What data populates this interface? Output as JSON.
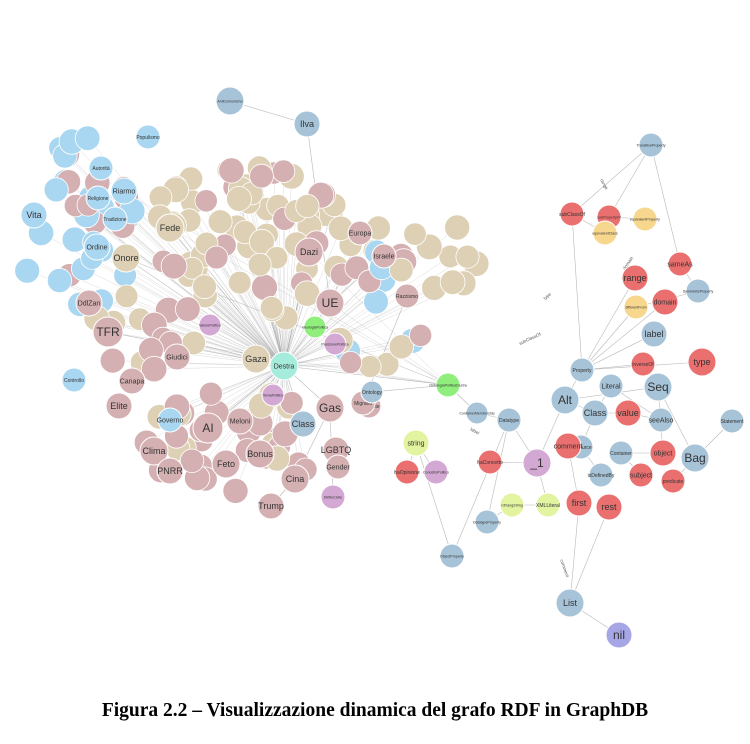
{
  "caption": "Figura 2.2 – Visualizzazione dinamica del grafo RDF in GraphDB",
  "colors": {
    "blue": "#a9d6f0",
    "tan": "#ddd0b4",
    "rose": "#d5b0b2",
    "steel": "#a7c3d7",
    "red": "#ea6f6f",
    "yellow": "#f7d78e",
    "green": "#90ee7c",
    "mint": "#a6ecdc",
    "lime": "#e2f4a0",
    "lilac": "#d3a8d3",
    "purple": "#a6a6e6",
    "edge": "#9a9a9a"
  },
  "nodes": [
    {
      "id": "antiComunismo",
      "label": "AntiComunismo",
      "c": "steel"
    },
    {
      "id": "ilva",
      "label": "Ilva",
      "c": "steel"
    },
    {
      "id": "ue",
      "label": "UE",
      "c": "rose"
    },
    {
      "id": "dazi",
      "label": "Dazi",
      "c": "rose"
    },
    {
      "id": "fede",
      "label": "Fede",
      "c": "tan"
    },
    {
      "id": "onore",
      "label": "Onore",
      "c": "tan"
    },
    {
      "id": "tfr",
      "label": "TFR",
      "c": "rose"
    },
    {
      "id": "vita",
      "label": "Vita",
      "c": "blue"
    },
    {
      "id": "ordine",
      "label": "Ordine",
      "c": "blue"
    },
    {
      "id": "riarmo",
      "label": "Riarmo",
      "c": "blue"
    },
    {
      "id": "gaza",
      "label": "Gaza",
      "c": "tan"
    },
    {
      "id": "destra",
      "label": "Destra",
      "c": "mint"
    },
    {
      "id": "gas",
      "label": "Gas",
      "c": "rose"
    },
    {
      "id": "class1",
      "label": "Class",
      "c": "steel"
    },
    {
      "id": "lgbtq",
      "label": "LGBTQ",
      "c": "rose"
    },
    {
      "id": "gender",
      "label": "Gender",
      "c": "rose"
    },
    {
      "id": "ai",
      "label": "AI",
      "c": "rose"
    },
    {
      "id": "meloni",
      "label": "Meloni",
      "c": "rose"
    },
    {
      "id": "clima",
      "label": "Clima",
      "c": "rose"
    },
    {
      "id": "feto",
      "label": "Feto",
      "c": "rose"
    },
    {
      "id": "bonus",
      "label": "Bonus",
      "c": "rose"
    },
    {
      "id": "pnrr",
      "label": "PNRR",
      "c": "rose"
    },
    {
      "id": "cina",
      "label": "Cina",
      "c": "rose"
    },
    {
      "id": "trump",
      "label": "Trump",
      "c": "rose"
    },
    {
      "id": "europa",
      "label": "Europa",
      "c": "rose"
    },
    {
      "id": "israele",
      "label": "Israele",
      "c": "rose"
    },
    {
      "id": "razzismo",
      "label": "Razzismo",
      "c": "rose"
    },
    {
      "id": "ambiente",
      "label": "Ambiente",
      "c": "rose"
    },
    {
      "id": "migranti",
      "label": "Migranti",
      "c": "rose"
    },
    {
      "id": "elite",
      "label": "Elite",
      "c": "rose"
    },
    {
      "id": "canapa",
      "label": "Canapa",
      "c": "rose"
    },
    {
      "id": "giudici",
      "label": "Giudici",
      "c": "rose"
    },
    {
      "id": "ddlzan",
      "label": "DdlZan",
      "c": "rose"
    },
    {
      "id": "governo",
      "label": "Governo",
      "c": "blue"
    },
    {
      "id": "controllo",
      "label": "Controllo",
      "c": "blue"
    },
    {
      "id": "religione",
      "label": "Religione",
      "c": "blue"
    },
    {
      "id": "tradizione",
      "label": "Tradizione",
      "c": "blue"
    },
    {
      "id": "autorita",
      "label": "Autorità",
      "c": "blue"
    },
    {
      "id": "populismo",
      "label": "Populismo",
      "c": "blue"
    },
    {
      "id": "string",
      "label": "string",
      "c": "lime"
    },
    {
      "id": "u1",
      "label": "_1",
      "c": "lilac"
    },
    {
      "id": "alt",
      "label": "Alt",
      "c": "steel"
    },
    {
      "id": "seq",
      "label": "Seq",
      "c": "steel"
    },
    {
      "id": "bag",
      "label": "Bag",
      "c": "steel"
    },
    {
      "id": "list",
      "label": "List",
      "c": "steel"
    },
    {
      "id": "nil",
      "label": "nil",
      "c": "purple"
    },
    {
      "id": "type",
      "label": "type",
      "c": "red"
    },
    {
      "id": "range",
      "label": "range",
      "c": "red"
    },
    {
      "id": "domain",
      "label": "domain",
      "c": "red"
    },
    {
      "id": "label",
      "label": "label",
      "c": "steel"
    },
    {
      "id": "value",
      "label": "value",
      "c": "red"
    },
    {
      "id": "object",
      "label": "object",
      "c": "red"
    },
    {
      "id": "subject",
      "label": "subject",
      "c": "red"
    },
    {
      "id": "first",
      "label": "first",
      "c": "red"
    },
    {
      "id": "rest",
      "label": "rest",
      "c": "red"
    },
    {
      "id": "class2",
      "label": "Class",
      "c": "steel"
    },
    {
      "id": "property",
      "label": "Property",
      "c": "steel"
    },
    {
      "id": "literal",
      "label": "Literal",
      "c": "steel"
    },
    {
      "id": "datatype",
      "label": "Datatype",
      "c": "steel"
    },
    {
      "id": "resource",
      "label": "Resource",
      "c": "steel"
    },
    {
      "id": "container",
      "label": "Container",
      "c": "steel"
    },
    {
      "id": "seealso",
      "label": "seeAlso",
      "c": "steel"
    },
    {
      "id": "statement",
      "label": "Statement",
      "c": "steel"
    },
    {
      "id": "predicate",
      "label": "predicate",
      "c": "red"
    },
    {
      "id": "isdefinedby",
      "label": "isDefinedBy",
      "c": "steel"
    },
    {
      "id": "comment",
      "label": "comment",
      "c": "red"
    },
    {
      "id": "subclassof",
      "label": "subClassOf",
      "c": "red"
    },
    {
      "id": "subpropertyof",
      "label": "subPropertyOf",
      "c": "red"
    },
    {
      "id": "transitiveproperty",
      "label": "TransitiveProperty",
      "c": "steel"
    },
    {
      "id": "symmetricproperty",
      "label": "SymmetricProperty",
      "c": "steel"
    },
    {
      "id": "equivalentclass",
      "label": "equivalentClass",
      "c": "yellow"
    },
    {
      "id": "equivalentproperty",
      "label": "equivalentProperty",
      "c": "yellow"
    },
    {
      "id": "differentfrom",
      "label": "differentFrom",
      "c": "yellow"
    },
    {
      "id": "inverseof",
      "label": "inverseOf",
      "c": "red"
    },
    {
      "id": "sameas",
      "label": "sameAs",
      "c": "red"
    },
    {
      "id": "datatypeproperty",
      "label": "DatatypeProperty",
      "c": "steel"
    },
    {
      "id": "objectproperty",
      "label": "ObjectProperty",
      "c": "steel"
    },
    {
      "id": "langstring",
      "label": "rdf:langString",
      "c": "lime"
    },
    {
      "id": "xmlliteral",
      "label": "XMLLiteral",
      "c": "lime"
    },
    {
      "id": "ontologiaPolitica",
      "label": "OntologiaPoliticaDestra",
      "c": "green"
    },
    {
      "id": "containerMembership",
      "label": "ContainerMembership",
      "c": "steel"
    },
    {
      "id": "ontology",
      "label": "Ontology",
      "c": "steel"
    },
    {
      "id": "concettoPolitico",
      "label": "ConcettoPolitico",
      "c": "lilac"
    },
    {
      "id": "haConcetto",
      "label": "haConcetto",
      "c": "red"
    },
    {
      "id": "haOpinione",
      "label": "haOpinione",
      "c": "red"
    },
    {
      "id": "valorePolitico",
      "label": "ValorePolitico",
      "c": "lilac"
    },
    {
      "id": "temaPolitico",
      "label": "TemaPolitico",
      "c": "lilac"
    },
    {
      "id": "ideologiaPolitica",
      "label": "IdeologiaPolitica",
      "c": "green"
    },
    {
      "id": "posizionePolitica",
      "label": "PosizionePolitica",
      "c": "lilac"
    },
    {
      "id": "dirittoCivile",
      "label": "DirittoCivile",
      "c": "lilac"
    }
  ],
  "edge_labels": [
    "type",
    "range",
    "domain",
    "subClassOf",
    "label",
    "comment"
  ]
}
